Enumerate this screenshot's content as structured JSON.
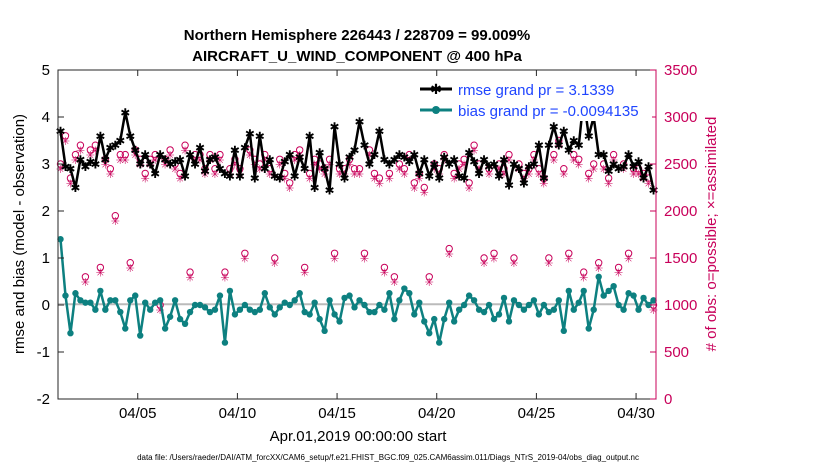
{
  "chart_data": {
    "type": "line",
    "title_line1": "Northern Hemisphere 226443 / 228709 = 99.009%",
    "title_line2": "AIRCRAFT_U_WIND_COMPONENT @ 400 hPa",
    "xlabel": "Apr.01,2019 00:00:00 start",
    "ylabel": "rmse and bias (model - observation)",
    "y2label": "# of obs: o=possible; ×=assimilated",
    "xlim": [
      1,
      31
    ],
    "ylim": [
      -2,
      5
    ],
    "y2lim": [
      0,
      3500
    ],
    "x_tick_values": [
      5,
      10,
      15,
      20,
      25,
      30
    ],
    "x_tick_labels": [
      "04/05",
      "04/10",
      "04/15",
      "04/20",
      "04/25",
      "04/30"
    ],
    "y_ticks": [
      "-2",
      "-1",
      "0",
      "1",
      "2",
      "3",
      "4",
      "5"
    ],
    "y2_ticks": [
      "0",
      "500",
      "1000",
      "1500",
      "2000",
      "2500",
      "3000",
      "3500"
    ],
    "x": [
      1.125,
      1.375,
      1.625,
      1.875,
      2.125,
      2.375,
      2.625,
      2.875,
      3.125,
      3.375,
      3.625,
      3.875,
      4.125,
      4.375,
      4.625,
      4.875,
      5.125,
      5.375,
      5.625,
      5.875,
      6.125,
      6.375,
      6.625,
      6.875,
      7.125,
      7.375,
      7.625,
      7.875,
      8.125,
      8.375,
      8.625,
      8.875,
      9.125,
      9.375,
      9.625,
      9.875,
      10.125,
      10.375,
      10.625,
      10.875,
      11.125,
      11.375,
      11.625,
      11.875,
      12.125,
      12.375,
      12.625,
      12.875,
      13.125,
      13.375,
      13.625,
      13.875,
      14.125,
      14.375,
      14.625,
      14.875,
      15.125,
      15.375,
      15.625,
      15.875,
      16.125,
      16.375,
      16.625,
      16.875,
      17.125,
      17.375,
      17.625,
      17.875,
      18.125,
      18.375,
      18.625,
      18.875,
      19.125,
      19.375,
      19.625,
      19.875,
      20.125,
      20.375,
      20.625,
      20.875,
      21.125,
      21.375,
      21.625,
      21.875,
      22.125,
      22.375,
      22.625,
      22.875,
      23.125,
      23.375,
      23.625,
      23.875,
      24.125,
      24.375,
      24.625,
      24.875,
      25.125,
      25.375,
      25.625,
      25.875,
      26.125,
      26.375,
      26.625,
      26.875,
      27.125,
      27.375,
      27.625,
      27.875,
      28.125,
      28.375,
      28.625,
      28.875,
      29.125,
      29.375,
      29.625,
      29.875,
      30.125,
      30.375,
      30.625,
      30.875
    ],
    "series": [
      {
        "name": "rmse grand pr = 3.1339",
        "color": "#000000",
        "values": [
          3.7,
          2.95,
          2.9,
          2.5,
          3.1,
          2.95,
          3.05,
          3.0,
          3.6,
          3.1,
          3.35,
          3.4,
          3.5,
          4.1,
          3.6,
          3.3,
          3.0,
          3.2,
          3.0,
          2.8,
          3.2,
          3.1,
          3.0,
          3.05,
          3.1,
          2.75,
          3.2,
          3.0,
          3.35,
          2.85,
          3.1,
          3.15,
          2.9,
          2.8,
          2.75,
          3.3,
          2.75,
          3.35,
          3.65,
          2.7,
          3.6,
          2.9,
          3.1,
          2.75,
          2.7,
          3.05,
          3.2,
          2.75,
          3.15,
          2.9,
          3.6,
          2.5,
          3.25,
          2.9,
          2.45,
          3.8,
          3.0,
          2.7,
          3.15,
          3.3,
          3.9,
          3.4,
          3.0,
          3.2,
          3.7,
          3.1,
          3.0,
          3.1,
          3.2,
          3.15,
          3.05,
          3.2,
          2.8,
          3.1,
          2.75,
          3.0,
          2.7,
          3.15,
          3.0,
          3.1,
          2.75,
          2.7,
          3.25,
          3.05,
          2.8,
          3.1,
          2.95,
          3.0,
          2.75,
          3.1,
          2.55,
          3.0,
          2.9,
          2.6,
          2.95,
          3.0,
          3.4,
          2.7,
          3.4,
          3.8,
          3.4,
          3.7,
          3.3,
          3.5,
          3.4,
          4.4,
          3.6,
          4.0,
          3.2,
          3.2,
          2.85,
          3.0,
          2.9,
          2.95,
          3.2,
          2.95,
          3.05,
          2.7,
          2.95,
          2.45
        ]
      },
      {
        "name": "bias grand pr = -0.0094135",
        "color": "#0d8080",
        "values": [
          1.4,
          0.2,
          -0.6,
          0.25,
          0.1,
          0.05,
          0.05,
          -0.1,
          0.3,
          -0.1,
          0.1,
          0.1,
          -0.15,
          -0.5,
          0.1,
          0.2,
          -0.65,
          0.05,
          -0.1,
          0.05,
          0.1,
          -0.5,
          -0.25,
          0.1,
          -0.3,
          -0.4,
          -0.15,
          0.0,
          0.0,
          -0.05,
          -0.15,
          -0.1,
          0.2,
          -0.8,
          0.3,
          -0.2,
          -0.1,
          0.0,
          -0.1,
          -0.15,
          -0.1,
          0.25,
          -0.05,
          -0.2,
          -0.05,
          0.05,
          0.0,
          0.1,
          0.25,
          -0.15,
          -0.2,
          0.05,
          -0.3,
          -0.55,
          0.1,
          -0.2,
          -0.35,
          0.15,
          0.2,
          -0.05,
          0.1,
          0.0,
          -0.15,
          -0.15,
          0.0,
          -0.1,
          0.25,
          -0.3,
          0.1,
          0.35,
          0.25,
          -0.2,
          0.05,
          -0.35,
          -0.6,
          -0.3,
          -0.8,
          -0.3,
          0.05,
          -0.35,
          -0.1,
          0.0,
          0.2,
          0.1,
          -0.1,
          -0.15,
          0.0,
          -0.3,
          -0.2,
          0.15,
          -0.35,
          0.1,
          0.0,
          -0.1,
          0.0,
          0.1,
          -0.2,
          0.0,
          -0.15,
          -0.1,
          0.1,
          -0.55,
          0.3,
          -0.1,
          0.05,
          0.3,
          -0.5,
          -0.1,
          0.6,
          0.2,
          0.3,
          0.4,
          0.0,
          -0.1,
          0.25,
          0.2,
          -0.1,
          0.15,
          0.0,
          0.1
        ]
      }
    ],
    "obs_possible": [
      2500,
      2800,
      2350,
      2600,
      2700,
      1300,
      2650,
      2700,
      1400,
      2550,
      2450,
      1950,
      2600,
      2600,
      1450,
      2650,
      2550,
      2400,
      2550,
      2600,
      1000,
      2550,
      2650,
      2500,
      2400,
      2700,
      1350,
      2600,
      2600,
      2450,
      2600,
      2450,
      2600,
      1350,
      2450,
      2550,
      2450,
      1550,
      2650,
      2550,
      2500,
      2600,
      2450,
      1500,
      2550,
      2400,
      2300,
      2600,
      2650,
      1400,
      2400,
      2550,
      2500,
      2450,
      2550,
      1550,
      2450,
      2450,
      2550,
      2450,
      2450,
      1550,
      2650,
      2400,
      2350,
      1400,
      2400,
      1300,
      2500,
      2450,
      2600,
      2300,
      2400,
      2250,
      1300,
      2500,
      2450,
      2600,
      1600,
      2400,
      2500,
      2550,
      2300,
      2700,
      2500,
      1500,
      2450,
      1550,
      2500,
      2450,
      2600,
      1500,
      2500,
      2400,
      2450,
      2600,
      2450,
      2350,
      1500,
      2600,
      2750,
      2450,
      1550,
      2600,
      2550,
      1350,
      2400,
      2500,
      1450,
      2500,
      2350,
      2600,
      1400,
      2500,
      1550,
      2450,
      2450,
      2400,
      2350,
      1000
    ],
    "obs_assimilated": [
      2450,
      2750,
      2300,
      2550,
      2650,
      1250,
      2600,
      2650,
      1350,
      2500,
      2400,
      1900,
      2550,
      2550,
      1400,
      2600,
      2500,
      2350,
      2500,
      2550,
      950,
      2500,
      2600,
      2450,
      2350,
      2650,
      1300,
      2550,
      2550,
      2400,
      2550,
      2400,
      2550,
      1300,
      2400,
      2500,
      2400,
      1500,
      2600,
      2500,
      2450,
      2550,
      2400,
      1450,
      2500,
      2350,
      2250,
      2550,
      2600,
      1350,
      2350,
      2500,
      2450,
      2400,
      2500,
      1500,
      2400,
      2400,
      2500,
      2400,
      2400,
      1500,
      2600,
      2350,
      2300,
      1350,
      2350,
      1250,
      2450,
      2400,
      2550,
      2250,
      2350,
      2200,
      1250,
      2450,
      2400,
      2550,
      1550,
      2350,
      2450,
      2500,
      2250,
      2650,
      2450,
      1450,
      2400,
      1500,
      2450,
      2400,
      2550,
      1450,
      2450,
      2350,
      2400,
      2550,
      2400,
      2300,
      1450,
      2550,
      2700,
      2400,
      1500,
      2550,
      2500,
      1300,
      2350,
      2450,
      1400,
      2450,
      2300,
      2550,
      1350,
      2450,
      1500,
      2400,
      2400,
      2350,
      2300,
      950
    ]
  },
  "footer": "data file: /Users/raeder/DAI/ATM_forcXX/CAM6_setup/f.e21.FHIST_BGC.f09_025.CAM6assim.011/Diags_NTrS_2019-04/obs_diag_output.nc",
  "colors": {
    "rmse": "#000000",
    "bias": "#0d8080",
    "obs": "#c8005a",
    "legend_text": "#1f45ff",
    "zero_line": "#bbbbbb"
  }
}
